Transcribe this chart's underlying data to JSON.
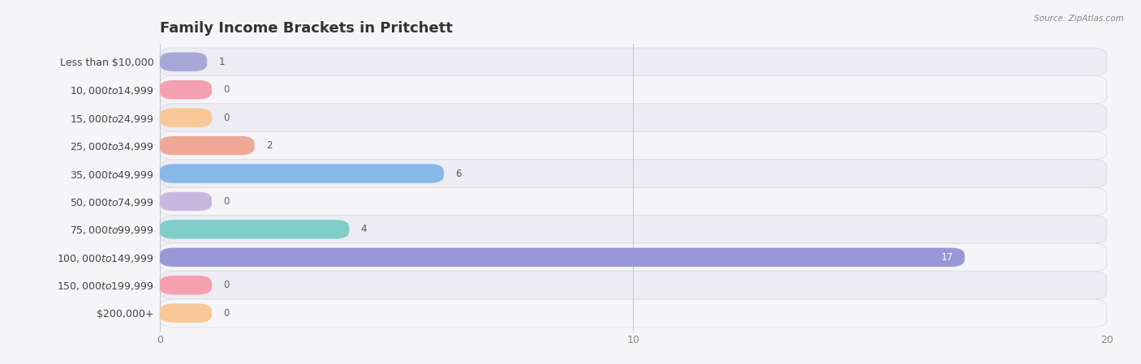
{
  "title": "Family Income Brackets in Pritchett",
  "source": "Source: ZipAtlas.com",
  "categories": [
    "Less than $10,000",
    "$10,000 to $14,999",
    "$15,000 to $24,999",
    "$25,000 to $34,999",
    "$35,000 to $49,999",
    "$50,000 to $74,999",
    "$75,000 to $99,999",
    "$100,000 to $149,999",
    "$150,000 to $199,999",
    "$200,000+"
  ],
  "values": [
    1,
    0,
    0,
    2,
    6,
    0,
    4,
    17,
    0,
    0
  ],
  "bar_colors": [
    "#a8a8d8",
    "#f4a0b0",
    "#f8c898",
    "#f0a898",
    "#88b8e8",
    "#c8b8e0",
    "#80ccc8",
    "#9898d8",
    "#f4a0b0",
    "#f8c898"
  ],
  "xlim": [
    0,
    20
  ],
  "xticks": [
    0,
    10,
    20
  ],
  "background_color": "#f5f5f8",
  "row_color_even": "#ececf2",
  "row_color_odd": "#f5f5f8",
  "title_fontsize": 13,
  "label_fontsize": 9,
  "value_fontsize": 8.5
}
